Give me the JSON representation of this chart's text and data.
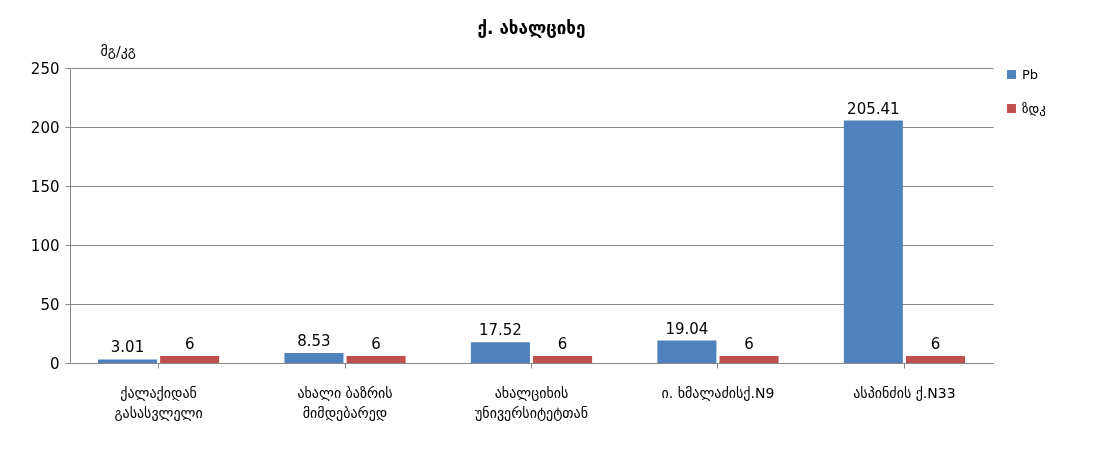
{
  "chart_data": {
    "type": "bar",
    "title": "ქ. ახალციხე",
    "ylabel": "მგ/კგ",
    "categories": [
      "ქალაქიდან\nგასასვლელი",
      "ახალი ბაზრის\nმიმდებარედ",
      "ახალციხის\nუნივერსიტეტთან",
      "ი. ხმალაძისქ.N9",
      "ასპინძის ქ.N33"
    ],
    "series": [
      {
        "name": "Pb",
        "color": "#4f81bd",
        "values": [
          3.01,
          8.53,
          17.52,
          19.04,
          205.41
        ]
      },
      {
        "name": "ზდკ",
        "color": "#c0504d",
        "values": [
          6,
          6,
          6,
          6,
          6
        ]
      }
    ],
    "ylim": [
      0,
      250
    ],
    "yticks": [
      0,
      50,
      100,
      150,
      200,
      250
    ],
    "grid": "y",
    "legend": "right",
    "data_labels": true
  }
}
